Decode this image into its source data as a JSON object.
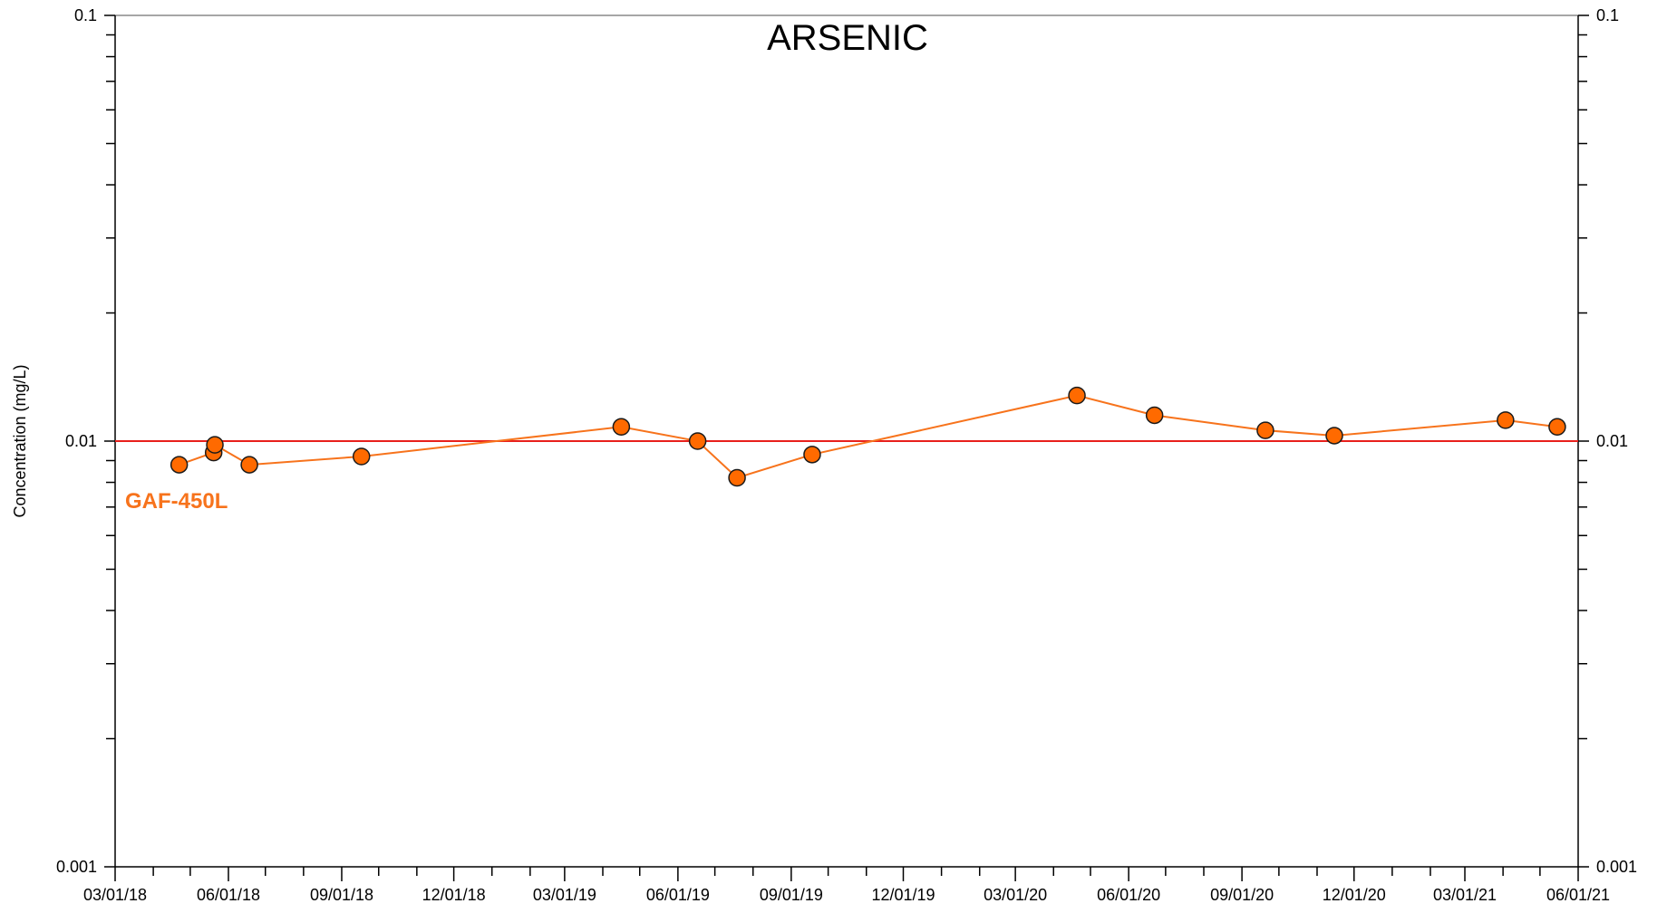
{
  "chart_data": {
    "type": "line",
    "title": "ARSENIC",
    "ylabel": "Concentration (mg/L)",
    "xlabel": "",
    "y_scale": "log",
    "ylim": [
      0.001,
      0.1
    ],
    "y_ticks": [
      {
        "value": 0.1,
        "label": "0.1"
      },
      {
        "value": 0.01,
        "label": "0.01"
      },
      {
        "value": 0.001,
        "label": "0.001"
      }
    ],
    "xlim": [
      "2018-03-01",
      "2021-06-01"
    ],
    "x_ticks": [
      {
        "date": "2018-03-01",
        "label": "03/01/18"
      },
      {
        "date": "2018-06-01",
        "label": "06/01/18"
      },
      {
        "date": "2018-09-01",
        "label": "09/01/18"
      },
      {
        "date": "2018-12-01",
        "label": "12/01/18"
      },
      {
        "date": "2019-03-01",
        "label": "03/01/19"
      },
      {
        "date": "2019-06-01",
        "label": "06/01/19"
      },
      {
        "date": "2019-09-01",
        "label": "09/01/19"
      },
      {
        "date": "2019-12-01",
        "label": "12/01/19"
      },
      {
        "date": "2020-03-01",
        "label": "03/01/20"
      },
      {
        "date": "2020-06-01",
        "label": "06/01/20"
      },
      {
        "date": "2020-09-01",
        "label": "09/01/20"
      },
      {
        "date": "2020-12-01",
        "label": "12/01/20"
      },
      {
        "date": "2021-03-01",
        "label": "03/01/21"
      },
      {
        "date": "2021-06-01",
        "label": "06/01/21"
      }
    ],
    "reference_line": {
      "value": 0.01,
      "color": "#e8201c"
    },
    "series": [
      {
        "name": "GAF-450L",
        "color": "#f7731c",
        "marker_fill": "#ff6a00",
        "points": [
          {
            "x": "2018-04-22",
            "y": 0.0088
          },
          {
            "x": "2018-05-20",
            "y": 0.0094
          },
          {
            "x": "2018-05-21",
            "y": 0.0098
          },
          {
            "x": "2018-06-18",
            "y": 0.0088
          },
          {
            "x": "2018-09-17",
            "y": 0.0092
          },
          {
            "x": "2019-04-16",
            "y": 0.0108
          },
          {
            "x": "2019-06-17",
            "y": 0.01
          },
          {
            "x": "2019-07-19",
            "y": 0.0082
          },
          {
            "x": "2019-09-18",
            "y": 0.0093
          },
          {
            "x": "2020-04-20",
            "y": 0.0128
          },
          {
            "x": "2020-06-22",
            "y": 0.0115
          },
          {
            "x": "2020-09-20",
            "y": 0.0106
          },
          {
            "x": "2020-11-15",
            "y": 0.0103
          },
          {
            "x": "2021-04-03",
            "y": 0.0112
          },
          {
            "x": "2021-05-15",
            "y": 0.0108
          }
        ]
      }
    ]
  }
}
